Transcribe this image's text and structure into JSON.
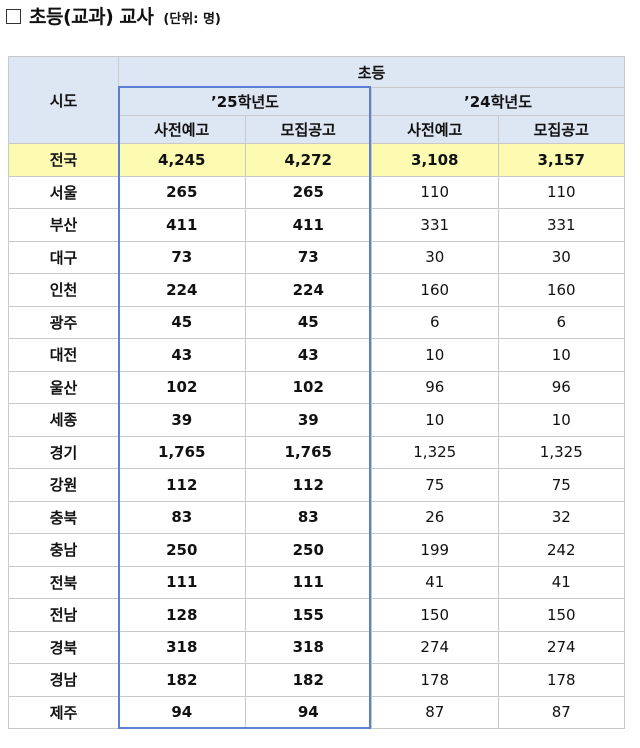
{
  "title": {
    "main": "초등(교과) 교사",
    "unit": "(단위: 명)"
  },
  "table": {
    "region_header": "시도",
    "group_header": "초등",
    "years": [
      "’25학년도",
      "’24학년도"
    ],
    "sub_headers": [
      "사전예고",
      "모집공고",
      "사전예고",
      "모집공고"
    ],
    "rows": [
      {
        "region": "전국",
        "values": [
          "4,245",
          "4,272",
          "3,108",
          "3,157"
        ]
      },
      {
        "region": "서울",
        "values": [
          "265",
          "265",
          "110",
          "110"
        ]
      },
      {
        "region": "부산",
        "values": [
          "411",
          "411",
          "331",
          "331"
        ]
      },
      {
        "region": "대구",
        "values": [
          "73",
          "73",
          "30",
          "30"
        ]
      },
      {
        "region": "인천",
        "values": [
          "224",
          "224",
          "160",
          "160"
        ]
      },
      {
        "region": "광주",
        "values": [
          "45",
          "45",
          "6",
          "6"
        ]
      },
      {
        "region": "대전",
        "values": [
          "43",
          "43",
          "10",
          "10"
        ]
      },
      {
        "region": "울산",
        "values": [
          "102",
          "102",
          "96",
          "96"
        ]
      },
      {
        "region": "세종",
        "values": [
          "39",
          "39",
          "10",
          "10"
        ]
      },
      {
        "region": "경기",
        "values": [
          "1,765",
          "1,765",
          "1,325",
          "1,325"
        ]
      },
      {
        "region": "강원",
        "values": [
          "112",
          "112",
          "75",
          "75"
        ]
      },
      {
        "region": "충북",
        "values": [
          "83",
          "83",
          "26",
          "32"
        ]
      },
      {
        "region": "충남",
        "values": [
          "250",
          "250",
          "199",
          "242"
        ]
      },
      {
        "region": "전북",
        "values": [
          "111",
          "111",
          "41",
          "41"
        ]
      },
      {
        "region": "전남",
        "values": [
          "128",
          "155",
          "150",
          "150"
        ]
      },
      {
        "region": "경북",
        "values": [
          "318",
          "318",
          "274",
          "274"
        ]
      },
      {
        "region": "경남",
        "values": [
          "182",
          "182",
          "178",
          "178"
        ]
      },
      {
        "region": "제주",
        "values": [
          "94",
          "94",
          "87",
          "87"
        ]
      }
    ]
  },
  "colors": {
    "header_bg": "#dde6f3",
    "total_row_bg": "#fdfab2",
    "highlight_border": "#5a7fd3"
  }
}
